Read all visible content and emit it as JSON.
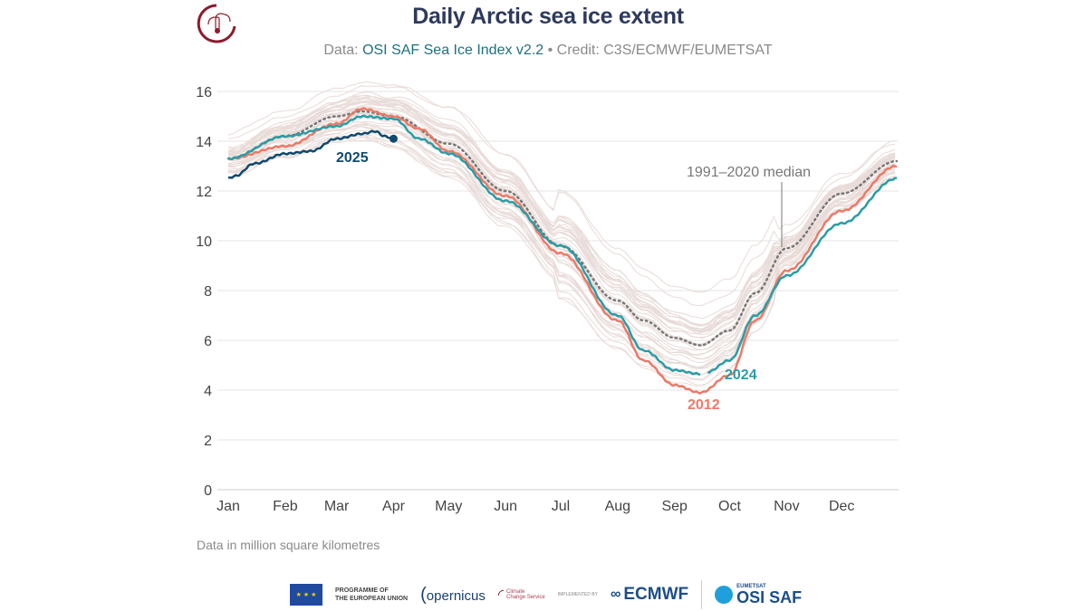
{
  "header": {
    "title": "Daily Arctic sea ice extent",
    "subtitle_prefix": "Data: ",
    "subtitle_source": "OSI SAF Sea Ice Index v2.2",
    "subtitle_credit": " • Credit: C3S/ECMWF/EUMETSAT"
  },
  "note": "Data in million square kilometres",
  "footer": {
    "eu_line1": "PROGRAMME OF",
    "eu_line2": "THE EUROPEAN UNION",
    "copernicus": "opernicus",
    "c3s_line1": "Climate",
    "c3s_line2": "Change Service",
    "implemented_by": "IMPLEMENTED BY",
    "ecmwf": "ECMWF",
    "eumetsat": "EUMETSAT",
    "osisaf": "OSI SAF"
  },
  "chart_data": {
    "type": "line",
    "title": "Daily Arctic sea ice extent",
    "xlabel": "",
    "ylabel": "",
    "unit": "million square kilometres",
    "ylim": [
      0,
      16
    ],
    "yticks": [
      0,
      2,
      4,
      6,
      8,
      10,
      12,
      14,
      16
    ],
    "xticks": [
      "Jan",
      "Feb",
      "Mar",
      "Apr",
      "May",
      "Jun",
      "Jul",
      "Aug",
      "Sep",
      "Oct",
      "Nov",
      "Dec"
    ],
    "grid": "horizontal",
    "colors": {
      "2025": "#0f4a6e",
      "2024": "#2a9da6",
      "2012": "#ec7a68",
      "median": "#777777",
      "other_years": "#e8dbd8"
    },
    "series": [
      {
        "name": "1991–2020 median",
        "style": "dotted",
        "x": [
          "01-01",
          "02-01",
          "03-01",
          "03-15",
          "04-01",
          "05-01",
          "06-01",
          "07-01",
          "08-01",
          "08-15",
          "09-01",
          "09-15",
          "10-01",
          "10-15",
          "11-01",
          "12-01",
          "12-31"
        ],
        "y": [
          13.3,
          14.2,
          15.0,
          15.2,
          15.0,
          13.9,
          12.0,
          9.8,
          7.6,
          6.8,
          6.1,
          5.8,
          6.4,
          7.9,
          9.7,
          11.9,
          13.2
        ]
      },
      {
        "name": "2012",
        "x": [
          "01-01",
          "02-01",
          "03-01",
          "03-15",
          "04-01",
          "04-15",
          "05-01",
          "06-01",
          "07-01",
          "08-01",
          "08-15",
          "09-01",
          "09-15",
          "10-01",
          "10-15",
          "11-01",
          "12-01",
          "12-31"
        ],
        "y": [
          13.3,
          13.8,
          14.7,
          15.3,
          15.0,
          14.5,
          13.6,
          11.8,
          9.5,
          6.8,
          5.2,
          4.2,
          3.9,
          4.6,
          6.8,
          8.8,
          11.2,
          13.0
        ]
      },
      {
        "name": "2024",
        "x": [
          "01-01",
          "02-01",
          "03-01",
          "03-15",
          "04-01",
          "04-15",
          "05-01",
          "06-01",
          "07-01",
          "08-01",
          "08-15",
          "09-01",
          "09-15"
        ],
        "y": [
          13.3,
          14.2,
          14.6,
          15.0,
          14.9,
          14.1,
          13.5,
          11.6,
          9.8,
          7.0,
          5.6,
          4.8,
          4.65
        ]
      },
      {
        "name": "2024",
        "segment": "after-gap",
        "x": [
          "09-19",
          "10-01",
          "10-15",
          "11-01",
          "12-01",
          "12-31"
        ],
        "y": [
          4.75,
          5.2,
          7.0,
          8.6,
          10.7,
          12.5
        ]
      },
      {
        "name": "2025",
        "x": [
          "01-01",
          "01-05",
          "01-15",
          "02-01",
          "02-15",
          "03-01",
          "03-15",
          "03-22",
          "03-27",
          "04-01"
        ],
        "y": [
          12.5,
          12.6,
          13.1,
          13.5,
          13.6,
          14.1,
          14.3,
          14.4,
          14.2,
          14.1
        ]
      }
    ],
    "annotations": [
      "2025",
      "2024",
      "2012",
      "1991–2020 median"
    ]
  }
}
